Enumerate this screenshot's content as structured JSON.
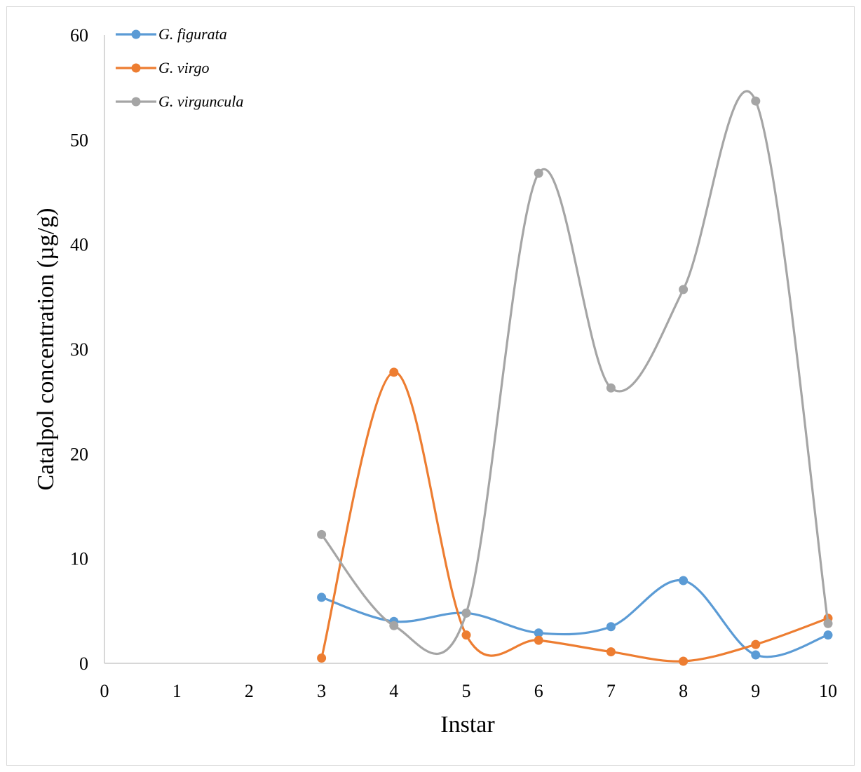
{
  "chart_data": {
    "type": "line",
    "smooth": true,
    "xlabel": "Instar",
    "ylabel": "Catalpol concentration (µg/g)",
    "xlim": [
      0,
      10
    ],
    "ylim": [
      0,
      60
    ],
    "x_ticks": [
      0,
      1,
      2,
      3,
      4,
      5,
      6,
      7,
      8,
      9,
      10
    ],
    "y_ticks": [
      0,
      10,
      20,
      30,
      40,
      50,
      60
    ],
    "grid": false,
    "legend_position": "top-left",
    "series": [
      {
        "name": "G. figurata",
        "color": "#5b9bd5",
        "x": [
          3,
          4,
          5,
          6,
          7,
          8,
          9,
          10
        ],
        "y": [
          6.3,
          4.0,
          4.8,
          2.9,
          3.5,
          7.9,
          0.8,
          2.7
        ]
      },
      {
        "name": "G. virgo",
        "color": "#ed7d31",
        "x": [
          3,
          4,
          5,
          6,
          7,
          8,
          9,
          10
        ],
        "y": [
          0.5,
          27.8,
          2.7,
          2.2,
          1.1,
          0.2,
          1.8,
          4.3
        ]
      },
      {
        "name": "G. virguncula",
        "color": "#a5a5a5",
        "x": [
          3,
          4,
          5,
          6,
          7,
          8,
          9,
          10
        ],
        "y": [
          12.3,
          3.6,
          4.8,
          46.8,
          26.3,
          35.7,
          53.7,
          3.8
        ]
      }
    ]
  }
}
